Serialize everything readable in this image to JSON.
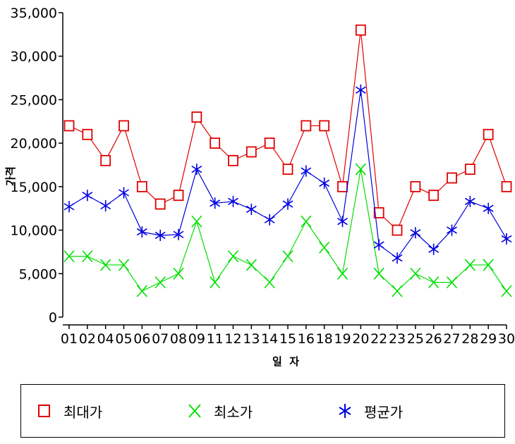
{
  "chart_data": {
    "type": "line",
    "xlabel": "일  자",
    "ylabel": "가격",
    "ylim": [
      0,
      35000
    ],
    "yticks": [
      "0",
      "5,000",
      "10,000",
      "15,000",
      "20,000",
      "25,000",
      "30,000",
      "35,000"
    ],
    "categories": [
      "01",
      "02",
      "04",
      "05",
      "06",
      "07",
      "08",
      "09",
      "11",
      "12",
      "13",
      "14",
      "15",
      "16",
      "18",
      "19",
      "20",
      "22",
      "23",
      "25",
      "26",
      "27",
      "28",
      "29",
      "30"
    ],
    "series": [
      {
        "name": "최대가",
        "color": "#e00000",
        "marker": "square",
        "values": [
          22000,
          21000,
          18000,
          22000,
          15000,
          13000,
          14000,
          23000,
          20000,
          18000,
          19000,
          20000,
          17000,
          22000,
          22000,
          15000,
          33000,
          12000,
          10000,
          15000,
          14000,
          16000,
          17000,
          21000,
          15000
        ]
      },
      {
        "name": "최소가",
        "color": "#00e000",
        "marker": "x",
        "values": [
          7000,
          7000,
          6000,
          6000,
          3000,
          4000,
          5000,
          11000,
          4000,
          7000,
          6000,
          4000,
          7000,
          11000,
          8000,
          5000,
          17000,
          5000,
          3000,
          5000,
          4000,
          4000,
          6000,
          6000,
          3000
        ]
      },
      {
        "name": "평균가",
        "color": "#0000e0",
        "marker": "asterisk",
        "values": [
          12700,
          14000,
          12800,
          14300,
          9800,
          9400,
          9500,
          17000,
          13100,
          13300,
          12400,
          11200,
          13000,
          16800,
          15400,
          11000,
          26100,
          8300,
          6800,
          9700,
          7800,
          10000,
          13300,
          12500,
          9000
        ]
      }
    ],
    "grid": false,
    "legend": "bottom"
  }
}
